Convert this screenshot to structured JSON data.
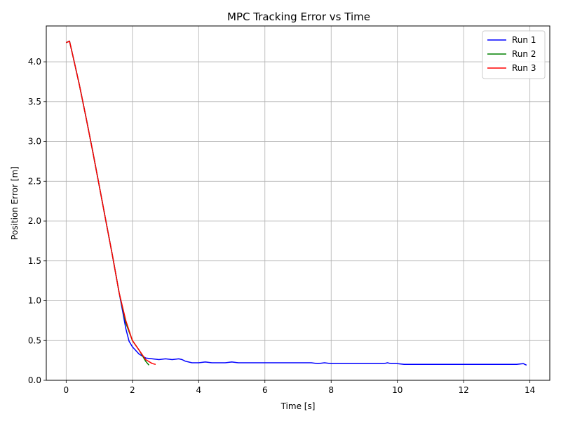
{
  "chart_data": {
    "type": "line",
    "title": "MPC Tracking Error vs Time",
    "xlabel": "Time [s]",
    "ylabel": "Position Error [m]",
    "xlim": [
      -0.6,
      14.6
    ],
    "ylim": [
      0.0,
      4.45
    ],
    "xticks": [
      0,
      2,
      4,
      6,
      8,
      10,
      12,
      14
    ],
    "xtick_labels": [
      "0",
      "2",
      "4",
      "6",
      "8",
      "10",
      "12",
      "14"
    ],
    "yticks": [
      0.0,
      0.5,
      1.0,
      1.5,
      2.0,
      2.5,
      3.0,
      3.5,
      4.0
    ],
    "ytick_labels": [
      "0.0",
      "0.5",
      "1.0",
      "1.5",
      "2.0",
      "2.5",
      "3.0",
      "3.5",
      "4.0"
    ],
    "grid": true,
    "legend_position": "top-right",
    "series": [
      {
        "name": "Run 1",
        "color": "#0000ff",
        "x": [
          0.0,
          0.1,
          0.2,
          0.4,
          0.6,
          0.8,
          1.0,
          1.2,
          1.4,
          1.6,
          1.7,
          1.8,
          1.9,
          2.0,
          2.2,
          2.4,
          2.6,
          2.8,
          3.0,
          3.2,
          3.4,
          3.5,
          3.6,
          3.8,
          4.0,
          4.2,
          4.4,
          4.6,
          4.8,
          5.0,
          5.2,
          5.4,
          5.6,
          5.8,
          6.0,
          6.2,
          6.4,
          6.6,
          6.8,
          7.0,
          7.2,
          7.4,
          7.6,
          7.8,
          8.0,
          8.2,
          8.4,
          8.6,
          8.8,
          9.0,
          9.2,
          9.4,
          9.6,
          9.7,
          9.8,
          10.0,
          10.2,
          10.4,
          10.6,
          10.8,
          11.0,
          11.2,
          11.4,
          11.6,
          11.8,
          12.0,
          12.2,
          12.4,
          12.6,
          12.8,
          13.0,
          13.2,
          13.4,
          13.6,
          13.8,
          13.9
        ],
        "y": [
          4.24,
          4.26,
          4.08,
          3.71,
          3.3,
          2.88,
          2.44,
          2.0,
          1.56,
          1.1,
          0.88,
          0.65,
          0.49,
          0.42,
          0.33,
          0.28,
          0.27,
          0.26,
          0.27,
          0.26,
          0.27,
          0.26,
          0.24,
          0.22,
          0.22,
          0.23,
          0.22,
          0.22,
          0.22,
          0.23,
          0.22,
          0.22,
          0.22,
          0.22,
          0.22,
          0.22,
          0.22,
          0.22,
          0.22,
          0.22,
          0.22,
          0.22,
          0.21,
          0.22,
          0.21,
          0.21,
          0.21,
          0.21,
          0.21,
          0.21,
          0.21,
          0.21,
          0.21,
          0.22,
          0.21,
          0.21,
          0.2,
          0.2,
          0.2,
          0.2,
          0.2,
          0.2,
          0.2,
          0.2,
          0.2,
          0.2,
          0.2,
          0.2,
          0.2,
          0.2,
          0.2,
          0.2,
          0.2,
          0.2,
          0.21,
          0.19
        ]
      },
      {
        "name": "Run 2",
        "color": "#008000",
        "x": [
          0.0,
          0.1,
          0.2,
          0.4,
          0.6,
          0.8,
          1.0,
          1.2,
          1.4,
          1.6,
          1.8,
          2.0,
          2.2,
          2.3,
          2.4,
          2.5
        ],
        "y": [
          4.24,
          4.26,
          4.08,
          3.71,
          3.3,
          2.88,
          2.44,
          2.0,
          1.56,
          1.1,
          0.72,
          0.5,
          0.38,
          0.31,
          0.24,
          0.19
        ]
      },
      {
        "name": "Run 3",
        "color": "#ff0000",
        "x": [
          0.0,
          0.1,
          0.2,
          0.4,
          0.6,
          0.8,
          1.0,
          1.2,
          1.4,
          1.6,
          1.8,
          2.0,
          2.2,
          2.4,
          2.6,
          2.7
        ],
        "y": [
          4.24,
          4.26,
          4.08,
          3.71,
          3.3,
          2.88,
          2.44,
          2.0,
          1.56,
          1.1,
          0.75,
          0.5,
          0.38,
          0.26,
          0.21,
          0.2
        ]
      }
    ]
  }
}
